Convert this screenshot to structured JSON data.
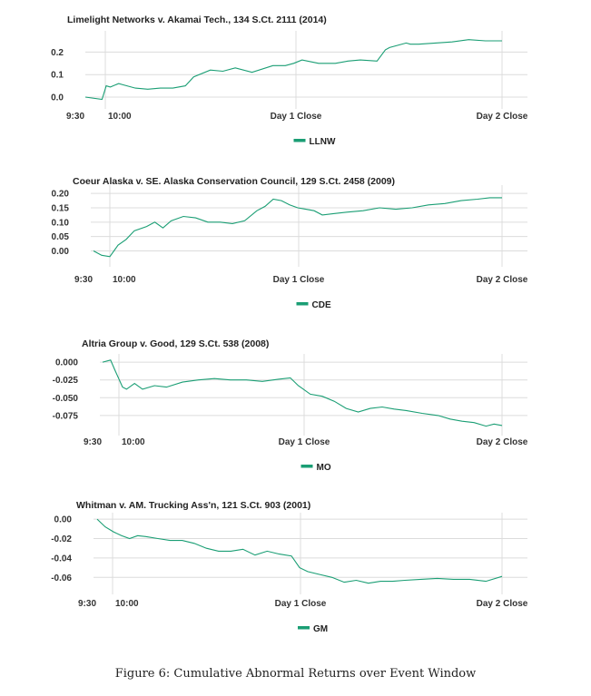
{
  "figure": {
    "caption": "Figure 6: Cumulative Abnormal Returns over Event Window",
    "line_color": "#1a9e74"
  },
  "chart_data": [
    {
      "type": "line",
      "title": "Limelight Networks v. Akamai Tech., 134 S.Ct. 2111 (2014)",
      "x_ticks": [
        "9:30",
        "10:00",
        "Day 1 Close",
        "Day 2 Close"
      ],
      "y_ticks": [
        "0.0",
        "0.1",
        "0.2"
      ],
      "ylim": [
        -0.02,
        0.27
      ],
      "grid": true,
      "legend": "bottom-center",
      "series": [
        {
          "name": "LLNW",
          "x": [
            0,
            0.04,
            0.05,
            0.06,
            0.08,
            0.09,
            0.12,
            0.15,
            0.18,
            0.21,
            0.24,
            0.26,
            0.3,
            0.33,
            0.36,
            0.4,
            0.45,
            0.48,
            0.5,
            0.52,
            0.56,
            0.6,
            0.63,
            0.66,
            0.7,
            0.72,
            0.73,
            0.75,
            0.77,
            0.78,
            0.8,
            0.84,
            0.88,
            0.92,
            0.96,
            1.0
          ],
          "values": [
            0.0,
            -0.01,
            0.05,
            0.045,
            0.06,
            0.055,
            0.04,
            0.035,
            0.04,
            0.04,
            0.05,
            0.09,
            0.12,
            0.115,
            0.13,
            0.11,
            0.14,
            0.14,
            0.15,
            0.165,
            0.15,
            0.15,
            0.16,
            0.165,
            0.16,
            0.21,
            0.22,
            0.23,
            0.24,
            0.235,
            0.235,
            0.24,
            0.245,
            0.255,
            0.25,
            0.25
          ]
        }
      ]
    },
    {
      "type": "line",
      "title": "Coeur Alaska v. SE. Alaska Conservation Council, 129 S.Ct. 2458 (2009)",
      "x_ticks": [
        "9:30",
        "10:00",
        "Day 1 Close",
        "Day 2 Close"
      ],
      "y_ticks": [
        "0.00",
        "0.05",
        "0.10",
        "0.15",
        "0.20"
      ],
      "ylim": [
        -0.03,
        0.21
      ],
      "grid": true,
      "legend": "bottom-center",
      "series": [
        {
          "name": "CDE",
          "x": [
            0,
            0.02,
            0.04,
            0.06,
            0.08,
            0.1,
            0.13,
            0.15,
            0.17,
            0.19,
            0.22,
            0.25,
            0.28,
            0.31,
            0.34,
            0.37,
            0.4,
            0.42,
            0.44,
            0.46,
            0.48,
            0.5,
            0.52,
            0.54,
            0.56,
            0.59,
            0.62,
            0.66,
            0.7,
            0.74,
            0.78,
            0.82,
            0.86,
            0.9,
            0.94,
            0.97,
            1.0
          ],
          "values": [
            0.0,
            -0.015,
            -0.02,
            0.02,
            0.04,
            0.07,
            0.085,
            0.1,
            0.08,
            0.105,
            0.12,
            0.115,
            0.1,
            0.1,
            0.095,
            0.105,
            0.14,
            0.155,
            0.18,
            0.175,
            0.16,
            0.15,
            0.145,
            0.14,
            0.125,
            0.13,
            0.135,
            0.14,
            0.15,
            0.145,
            0.15,
            0.16,
            0.165,
            0.175,
            0.18,
            0.185,
            0.185
          ]
        }
      ]
    },
    {
      "type": "line",
      "title": "Altria Group v. Good, 129 S.Ct. 538 (2008)",
      "x_ticks": [
        "9:30",
        "10:00",
        "Day 1 Close",
        "Day 2 Close"
      ],
      "y_ticks": [
        "0.000",
        "-0.025",
        "-0.050",
        "-0.075"
      ],
      "ylim": [
        -0.093,
        0.004
      ],
      "grid": true,
      "legend": "bottom-center",
      "series": [
        {
          "name": "MO",
          "x": [
            0,
            0.02,
            0.03,
            0.05,
            0.06,
            0.08,
            0.1,
            0.13,
            0.16,
            0.2,
            0.24,
            0.28,
            0.32,
            0.36,
            0.4,
            0.44,
            0.47,
            0.49,
            0.5,
            0.52,
            0.55,
            0.58,
            0.61,
            0.64,
            0.67,
            0.7,
            0.73,
            0.76,
            0.8,
            0.84,
            0.87,
            0.9,
            0.93,
            0.96,
            0.98,
            1.0
          ],
          "values": [
            0.0,
            0.003,
            -0.01,
            -0.035,
            -0.038,
            -0.03,
            -0.038,
            -0.033,
            -0.035,
            -0.028,
            -0.025,
            -0.023,
            -0.025,
            -0.025,
            -0.027,
            -0.024,
            -0.022,
            -0.033,
            -0.037,
            -0.045,
            -0.048,
            -0.055,
            -0.065,
            -0.07,
            -0.065,
            -0.063,
            -0.066,
            -0.068,
            -0.072,
            -0.075,
            -0.08,
            -0.083,
            -0.085,
            -0.09,
            -0.087,
            -0.089
          ]
        }
      ]
    },
    {
      "type": "line",
      "title": "Whitman v. AM. Trucking Ass'n, 121 S.Ct. 903 (2001)",
      "x_ticks": [
        "9:30",
        "10:00",
        "Day 1 Close",
        "Day 2 Close"
      ],
      "y_ticks": [
        "0.00",
        "-0.02",
        "-0.04",
        "-0.06"
      ],
      "ylim": [
        -0.07,
        0.001
      ],
      "grid": true,
      "legend": "bottom-center",
      "series": [
        {
          "name": "GM",
          "x": [
            0,
            0.02,
            0.04,
            0.06,
            0.08,
            0.1,
            0.12,
            0.15,
            0.18,
            0.21,
            0.24,
            0.27,
            0.3,
            0.33,
            0.36,
            0.39,
            0.42,
            0.45,
            0.48,
            0.5,
            0.52,
            0.55,
            0.58,
            0.61,
            0.64,
            0.67,
            0.7,
            0.73,
            0.76,
            0.8,
            0.84,
            0.88,
            0.92,
            0.96,
            1.0
          ],
          "values": [
            0.0,
            -0.008,
            -0.013,
            -0.017,
            -0.02,
            -0.017,
            -0.018,
            -0.02,
            -0.022,
            -0.022,
            -0.025,
            -0.03,
            -0.033,
            -0.033,
            -0.031,
            -0.037,
            -0.033,
            -0.036,
            -0.038,
            -0.05,
            -0.054,
            -0.057,
            -0.06,
            -0.065,
            -0.063,
            -0.066,
            -0.064,
            -0.064,
            -0.063,
            -0.062,
            -0.061,
            -0.062,
            -0.062,
            -0.064,
            -0.059
          ]
        }
      ]
    }
  ]
}
